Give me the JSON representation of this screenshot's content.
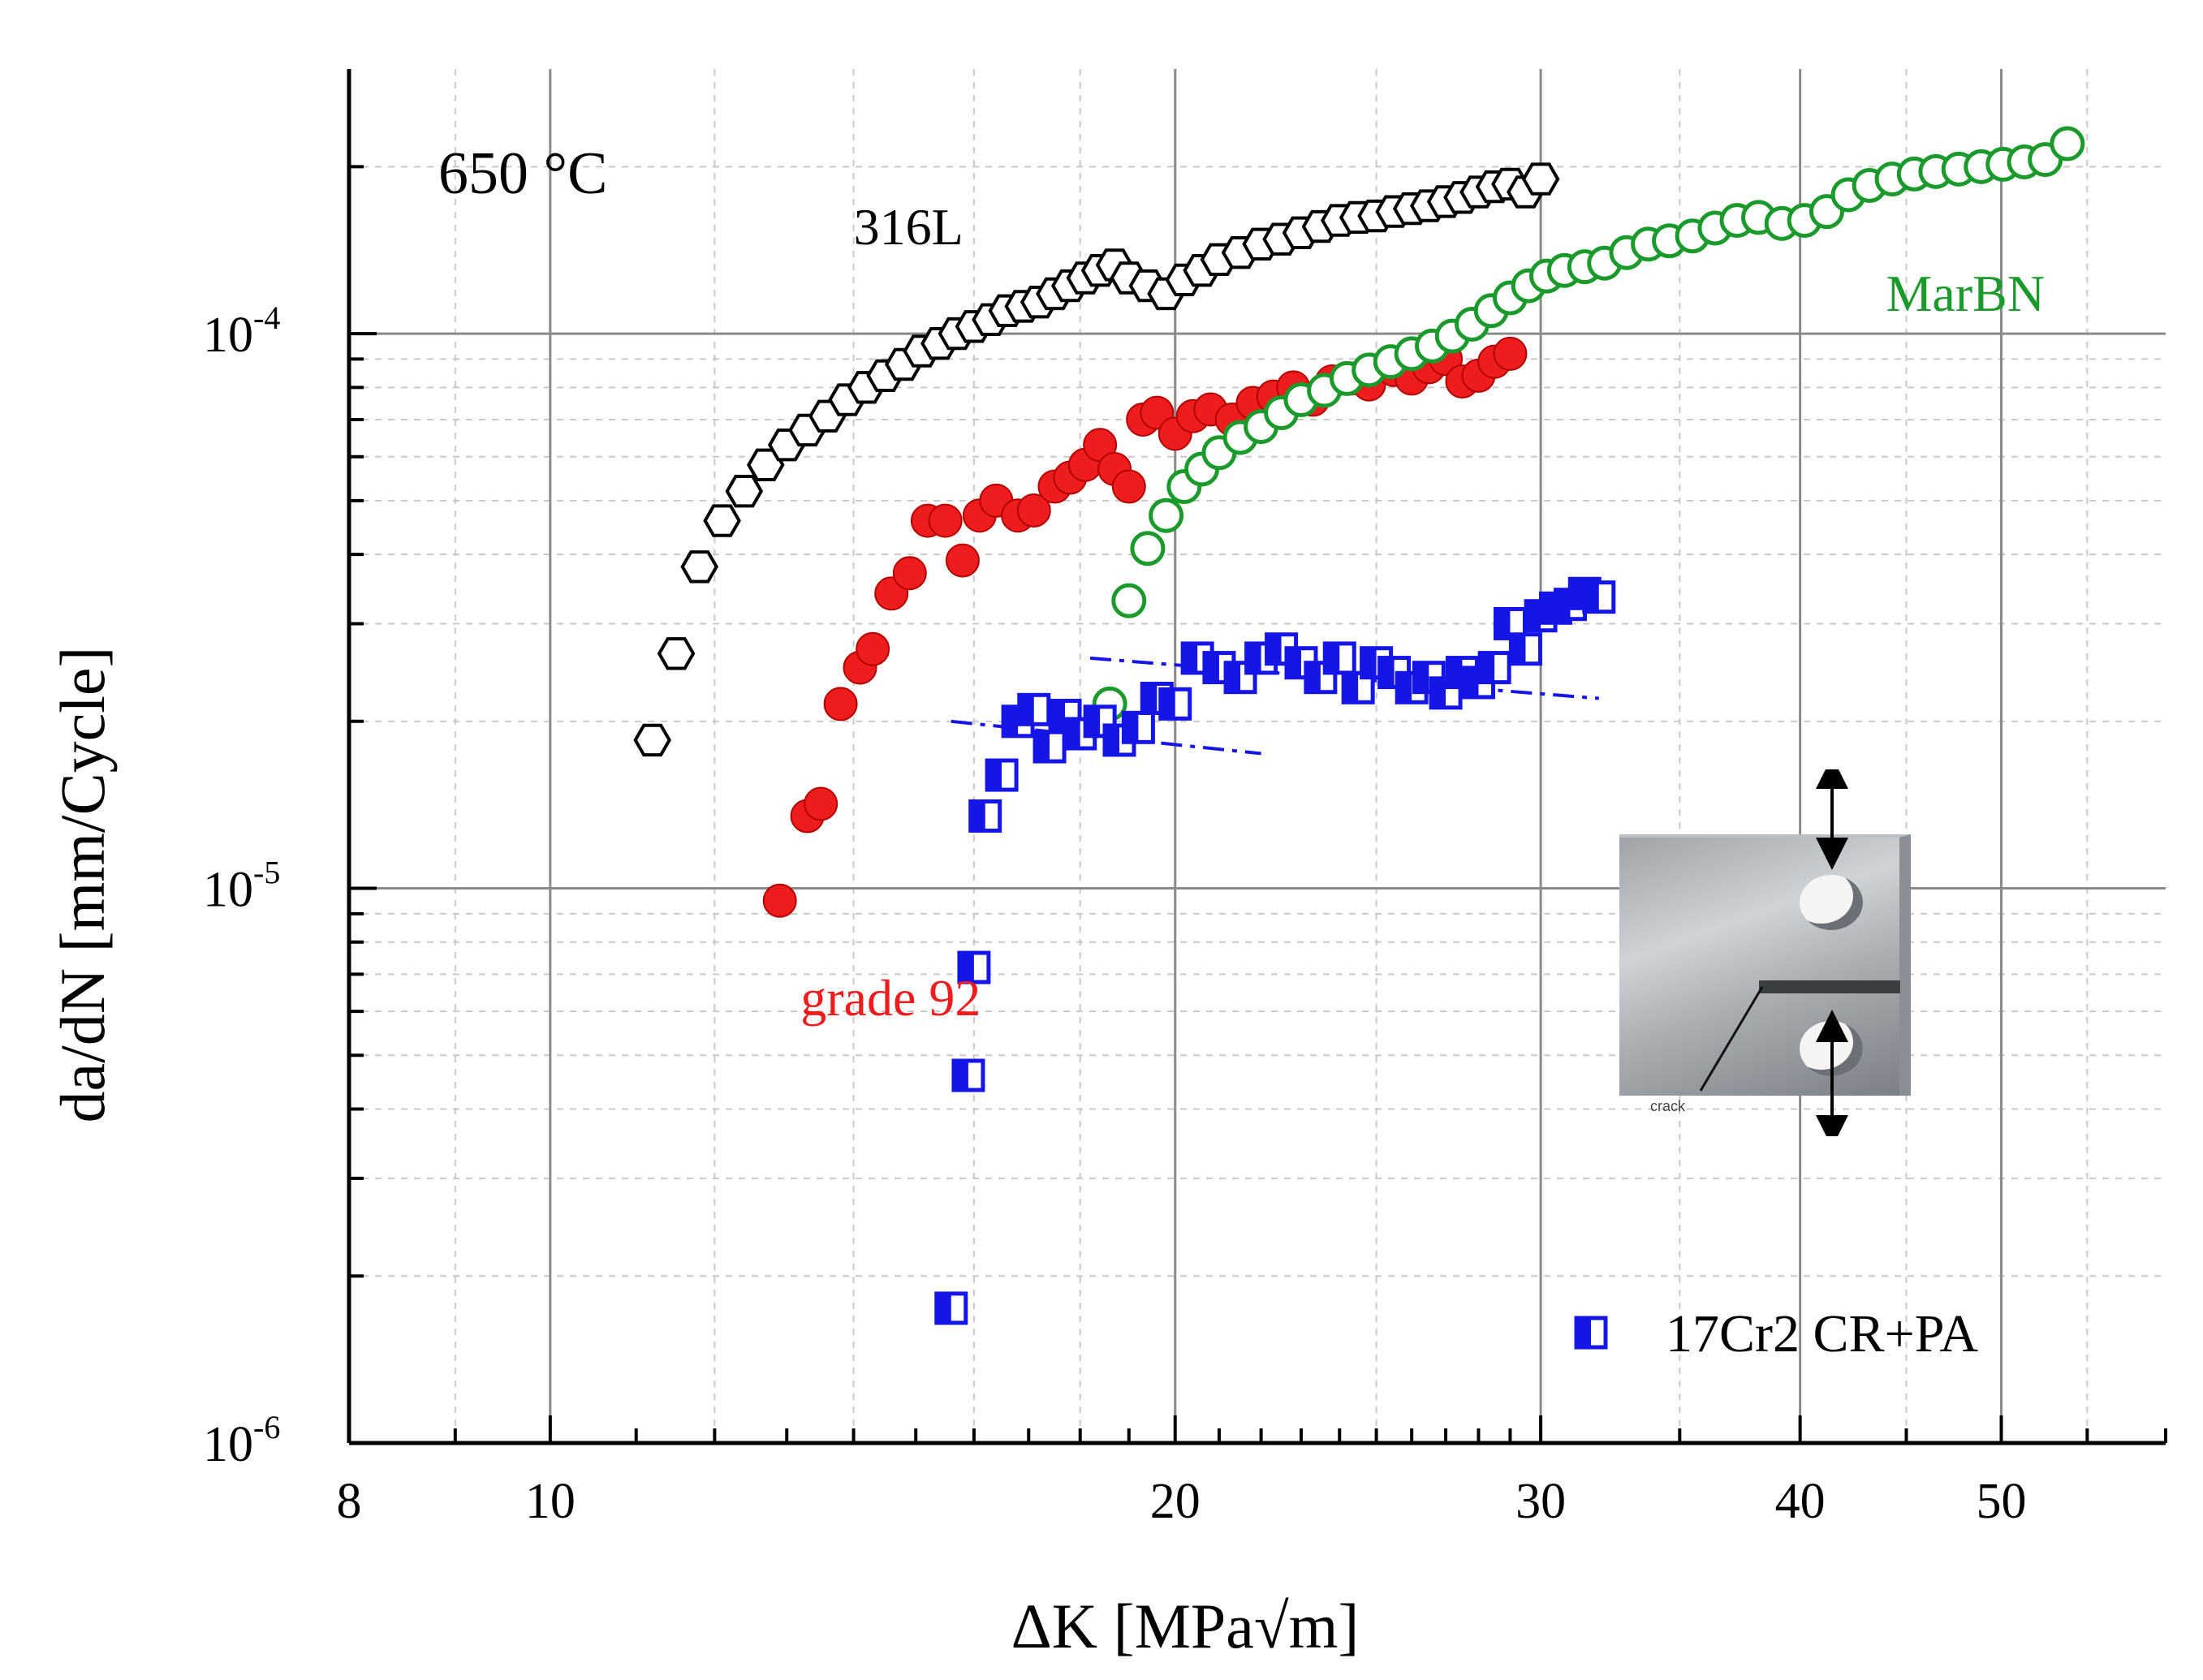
{
  "chart_data": {
    "type": "scatter",
    "xscale": "log",
    "yscale": "log",
    "xlim": [
      8,
      60
    ],
    "ylim": [
      1e-06,
      0.0003
    ],
    "xlabel": "ΔK [MPa√m]",
    "ylabel": "da/dN [mm/Cycle]",
    "x_ticks": [
      8,
      10,
      20,
      30,
      40,
      50
    ],
    "x_tick_labels": [
      "8",
      "10",
      "20",
      "30",
      "40",
      "50"
    ],
    "y_ticks": [
      1e-06,
      1e-05,
      0.0001
    ],
    "y_tick_labels": [
      {
        "base": "10",
        "exp": "-6"
      },
      {
        "base": "10",
        "exp": "-5"
      },
      {
        "base": "10",
        "exp": "-4"
      }
    ],
    "grid": true,
    "temperature_label": "650 °C",
    "series": [
      {
        "name": "316L",
        "marker": "hexagon-open",
        "color": "#000000",
        "points": [
          [
            11.2,
            1.85e-05
          ],
          [
            11.5,
            2.65e-05
          ],
          [
            11.8,
            3.8e-05
          ],
          [
            12.1,
            4.6e-05
          ],
          [
            12.4,
            5.2e-05
          ],
          [
            12.7,
            5.8e-05
          ],
          [
            13.0,
            6.3e-05
          ],
          [
            13.3,
            6.7e-05
          ],
          [
            13.6,
            7.1e-05
          ],
          [
            13.9,
            7.6e-05
          ],
          [
            14.2,
            8e-05
          ],
          [
            14.5,
            8.4e-05
          ],
          [
            14.8,
            8.8e-05
          ],
          [
            15.1,
            9.3e-05
          ],
          [
            15.4,
            9.6e-05
          ],
          [
            15.7,
            0.0001
          ],
          [
            16.0,
            0.000103
          ],
          [
            16.3,
            0.000106
          ],
          [
            16.6,
            0.00011
          ],
          [
            16.9,
            0.000112
          ],
          [
            17.2,
            0.000114
          ],
          [
            17.5,
            0.000118
          ],
          [
            17.8,
            0.000122
          ],
          [
            18.1,
            0.000126
          ],
          [
            18.4,
            0.00013
          ],
          [
            18.7,
            0.000133
          ],
          [
            19.0,
            0.000126
          ],
          [
            19.4,
            0.000122
          ],
          [
            19.8,
            0.000118
          ],
          [
            20.2,
            0.000125
          ],
          [
            20.6,
            0.00013
          ],
          [
            21.0,
            0.000136
          ],
          [
            21.5,
            0.00014
          ],
          [
            22.0,
            0.000145
          ],
          [
            22.5,
            0.000148
          ],
          [
            23.0,
            0.000152
          ],
          [
            23.5,
            0.000156
          ],
          [
            24.0,
            0.00016
          ],
          [
            24.5,
            0.000162
          ],
          [
            25.0,
            0.000163
          ],
          [
            25.5,
            0.000166
          ],
          [
            26.0,
            0.000168
          ],
          [
            26.5,
            0.00017
          ],
          [
            27.0,
            0.000173
          ],
          [
            27.5,
            0.000176
          ],
          [
            28.0,
            0.00018
          ],
          [
            28.5,
            0.000184
          ],
          [
            29.0,
            0.000186
          ],
          [
            29.5,
            0.00018
          ],
          [
            30.0,
            0.00019
          ]
        ]
      },
      {
        "name": "grade 92",
        "marker": "circle-filled",
        "color": "#ee1c1c",
        "points": [
          [
            12.9,
            9.5e-06
          ],
          [
            13.3,
            1.35e-05
          ],
          [
            13.5,
            1.42e-05
          ],
          [
            13.8,
            2.15e-05
          ],
          [
            14.1,
            2.5e-05
          ],
          [
            14.3,
            2.7e-05
          ],
          [
            14.6,
            3.4e-05
          ],
          [
            14.9,
            3.7e-05
          ],
          [
            15.2,
            4.6e-05
          ],
          [
            15.5,
            4.6e-05
          ],
          [
            15.8,
            3.9e-05
          ],
          [
            16.1,
            4.7e-05
          ],
          [
            16.4,
            5e-05
          ],
          [
            16.8,
            4.7e-05
          ],
          [
            17.1,
            4.8e-05
          ],
          [
            17.5,
            5.3e-05
          ],
          [
            17.8,
            5.5e-05
          ],
          [
            18.1,
            5.8e-05
          ],
          [
            18.4,
            6.3e-05
          ],
          [
            18.7,
            5.7e-05
          ],
          [
            19.0,
            5.3e-05
          ],
          [
            19.3,
            7e-05
          ],
          [
            19.6,
            7.2e-05
          ],
          [
            20.0,
            6.6e-05
          ],
          [
            20.4,
            7.1e-05
          ],
          [
            20.8,
            7.3e-05
          ],
          [
            21.3,
            7e-05
          ],
          [
            21.8,
            7.5e-05
          ],
          [
            22.3,
            7.7e-05
          ],
          [
            22.8,
            8e-05
          ],
          [
            23.3,
            7.6e-05
          ],
          [
            23.8,
            8.2e-05
          ],
          [
            24.3,
            8.3e-05
          ],
          [
            24.8,
            8.1e-05
          ],
          [
            25.5,
            8.6e-05
          ],
          [
            26.0,
            8.3e-05
          ],
          [
            26.5,
            8.7e-05
          ],
          [
            27.0,
            9e-05
          ],
          [
            27.5,
            8.2e-05
          ],
          [
            28.0,
            8.4e-05
          ],
          [
            28.5,
            8.9e-05
          ],
          [
            29.0,
            9.2e-05
          ]
        ]
      },
      {
        "name": "MarBN",
        "marker": "circle-open",
        "color": "#1a9a2a",
        "points": [
          [
            18.6,
            2.15e-05
          ],
          [
            19.0,
            3.3e-05
          ],
          [
            19.4,
            4.1e-05
          ],
          [
            19.8,
            4.7e-05
          ],
          [
            20.2,
            5.3e-05
          ],
          [
            20.6,
            5.7e-05
          ],
          [
            21.0,
            6.1e-05
          ],
          [
            21.5,
            6.5e-05
          ],
          [
            22.0,
            6.8e-05
          ],
          [
            22.5,
            7.2e-05
          ],
          [
            23.0,
            7.6e-05
          ],
          [
            23.6,
            7.9e-05
          ],
          [
            24.2,
            8.3e-05
          ],
          [
            24.8,
            8.6e-05
          ],
          [
            25.4,
            8.9e-05
          ],
          [
            26.0,
            9.2e-05
          ],
          [
            26.6,
            9.5e-05
          ],
          [
            27.2,
            9.9e-05
          ],
          [
            27.8,
            0.000104
          ],
          [
            28.4,
            0.00011
          ],
          [
            29.0,
            0.000116
          ],
          [
            29.6,
            0.000122
          ],
          [
            30.2,
            0.000127
          ],
          [
            30.8,
            0.00013
          ],
          [
            31.5,
            0.000132
          ],
          [
            32.2,
            0.000134
          ],
          [
            33.0,
            0.00014
          ],
          [
            33.8,
            0.000145
          ],
          [
            34.6,
            0.000147
          ],
          [
            35.5,
            0.00015
          ],
          [
            36.4,
            0.000155
          ],
          [
            37.3,
            0.00016
          ],
          [
            38.2,
            0.000162
          ],
          [
            39.2,
            0.000158
          ],
          [
            40.2,
            0.00016
          ],
          [
            41.2,
            0.000166
          ],
          [
            42.2,
            0.000178
          ],
          [
            43.2,
            0.000185
          ],
          [
            44.3,
            0.00019
          ],
          [
            45.4,
            0.000194
          ],
          [
            46.5,
            0.000196
          ],
          [
            47.7,
            0.000198
          ],
          [
            48.9,
            0.0002
          ],
          [
            50.1,
            0.000202
          ],
          [
            51.3,
            0.000204
          ],
          [
            52.5,
            0.000206
          ],
          [
            53.8,
            0.00022
          ]
        ]
      },
      {
        "name": "17Cr2 CR+PA",
        "marker": "square-half",
        "color": "#1515e8",
        "points": [
          [
            15.6,
            1.75e-06
          ],
          [
            15.9,
            4.6e-06
          ],
          [
            16.0,
            7.2e-06
          ],
          [
            16.2,
            1.35e-05
          ],
          [
            16.5,
            1.6e-05
          ],
          [
            16.8,
            2e-05
          ],
          [
            17.1,
            2.1e-05
          ],
          [
            17.4,
            1.8e-05
          ],
          [
            17.7,
            2.05e-05
          ],
          [
            18.0,
            1.9e-05
          ],
          [
            18.4,
            2e-05
          ],
          [
            18.8,
            1.85e-05
          ],
          [
            19.2,
            1.95e-05
          ],
          [
            19.6,
            2.2e-05
          ],
          [
            20.0,
            2.15e-05
          ],
          [
            20.5,
            2.6e-05
          ],
          [
            21.0,
            2.5e-05
          ],
          [
            21.5,
            2.4e-05
          ],
          [
            22.0,
            2.6e-05
          ],
          [
            22.5,
            2.7e-05
          ],
          [
            23.0,
            2.55e-05
          ],
          [
            23.5,
            2.4e-05
          ],
          [
            24.0,
            2.6e-05
          ],
          [
            24.5,
            2.3e-05
          ],
          [
            25.0,
            2.55e-05
          ],
          [
            25.5,
            2.45e-05
          ],
          [
            26.0,
            2.3e-05
          ],
          [
            26.5,
            2.4e-05
          ],
          [
            27.0,
            2.25e-05
          ],
          [
            27.5,
            2.45e-05
          ],
          [
            28.0,
            2.35e-05
          ],
          [
            28.5,
            2.5e-05
          ],
          [
            29.0,
            3e-05
          ],
          [
            29.5,
            2.7e-05
          ],
          [
            30.0,
            3.1e-05
          ],
          [
            30.5,
            3.2e-05
          ],
          [
            31.0,
            3.25e-05
          ],
          [
            31.5,
            3.4e-05
          ],
          [
            32.0,
            3.35e-05
          ]
        ]
      }
    ],
    "trend_lines": [
      {
        "color": "#1515e8",
        "from": [
          15.6,
          2e-05
        ],
        "to": [
          22.0,
          1.75e-05
        ]
      },
      {
        "color": "#1515e8",
        "from": [
          18.2,
          2.6e-05
        ],
        "to": [
          32.0,
          2.2e-05
        ]
      }
    ],
    "annotations": [
      {
        "text": "316L",
        "color": "#000000",
        "at": [
          14.0,
          0.000145
        ]
      },
      {
        "text": "MarBN",
        "color": "#1a9a2a",
        "at": [
          44.0,
          0.00011
        ]
      },
      {
        "text": "grade 92",
        "color": "#ee1c1c",
        "at": [
          13.2,
          5.9e-06
        ]
      }
    ],
    "legend": {
      "label": "17Cr2 CR+PA",
      "position": "bottom-right"
    }
  },
  "inset": {
    "crack_label": "crack"
  }
}
